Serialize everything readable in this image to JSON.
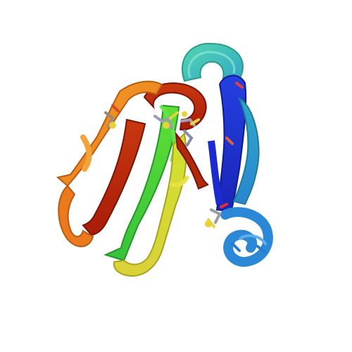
{
  "scene": {
    "background": "#ffffff",
    "subject": "protein-ribbon-cartoon",
    "coloring": "rainbow-n-to-c",
    "palette": {
      "blue": "#1f2fd8",
      "light_blue": "#2a8fd8",
      "cyan": "#27b6c4",
      "teal": "#3ec7a4",
      "green": "#3fd93a",
      "lime": "#a7d62a",
      "yellow": "#e4d93a",
      "orange": "#f0a024",
      "dark_orange": "#e8701c",
      "red": "#c03010",
      "dark_red": "#a01808"
    }
  }
}
